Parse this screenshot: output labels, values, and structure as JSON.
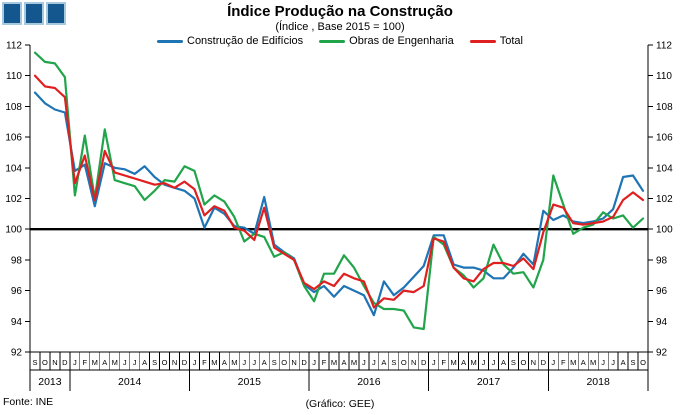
{
  "header": {
    "title": "Índice Produção na Construção",
    "subtitle": "(Índice , Base 2015 = 100)"
  },
  "footer": {
    "source": "Fonte: INE",
    "credit": "(Gráfico: GEE)"
  },
  "logo": {
    "square_fill": "#14578F",
    "square_border": "#A6C9E0",
    "square_count": 3
  },
  "chart_data": {
    "type": "line",
    "title": "Índice Produção na Construção",
    "subtitle": "(Índice , Base 2015 = 100)",
    "background": "#FFFFFF",
    "grid": false,
    "legend_position": "top",
    "reference_line": 100,
    "y_axis": {
      "min": 92,
      "max": 112,
      "tick_step": 2,
      "tick_labels": [
        112,
        110,
        108,
        106,
        104,
        102,
        100,
        98,
        96,
        94,
        92
      ],
      "sides": [
        "left",
        "right"
      ]
    },
    "x_axis": {
      "month_letters": [
        "S",
        "O",
        "N",
        "D",
        "J",
        "F",
        "M",
        "A",
        "M",
        "J",
        "J",
        "A",
        "S",
        "O",
        "N",
        "D",
        "J",
        "F",
        "M",
        "A",
        "M",
        "J",
        "J",
        "A",
        "S",
        "O",
        "N",
        "D",
        "J",
        "F",
        "M",
        "A",
        "M",
        "J",
        "J",
        "A",
        "S",
        "O",
        "N",
        "D",
        "J",
        "F",
        "M",
        "A",
        "M",
        "J",
        "J",
        "A",
        "S",
        "O",
        "N",
        "D",
        "J",
        "F",
        "M",
        "A",
        "M",
        "J",
        "J",
        "A",
        "S",
        "O"
      ],
      "years": [
        {
          "label": "2013",
          "months": 4
        },
        {
          "label": "2014",
          "months": 12
        },
        {
          "label": "2015",
          "months": 12
        },
        {
          "label": "2016",
          "months": 12
        },
        {
          "label": "2017",
          "months": 12
        },
        {
          "label": "2018",
          "months": 10
        }
      ]
    },
    "series": [
      {
        "name": "Construção de Edifícios",
        "color": "#1F74B4",
        "values": [
          108.9,
          108.2,
          107.8,
          107.6,
          103.8,
          104.2,
          101.5,
          104.3,
          104.0,
          103.9,
          103.6,
          104.1,
          103.4,
          102.9,
          102.7,
          102.5,
          102.0,
          100.1,
          101.4,
          101.0,
          100.2,
          100.1,
          99.7,
          102.1,
          99.0,
          98.5,
          98.1,
          96.4,
          95.9,
          96.3,
          95.6,
          96.3,
          96.0,
          95.7,
          94.4,
          96.6,
          95.7,
          96.2,
          96.9,
          97.6,
          99.6,
          99.6,
          97.7,
          97.5,
          97.5,
          97.3,
          96.8,
          96.8,
          97.5,
          98.4,
          97.7,
          101.2,
          100.6,
          100.9,
          100.5,
          100.4,
          100.5,
          100.7,
          101.3,
          103.4,
          103.5,
          102.5
        ]
      },
      {
        "name": "Obras de Engenharia",
        "color": "#22A44B",
        "values": [
          111.5,
          110.9,
          110.8,
          109.9,
          102.2,
          106.1,
          102.0,
          106.5,
          103.2,
          103.0,
          102.8,
          101.9,
          102.5,
          103.2,
          103.1,
          104.1,
          103.8,
          101.6,
          102.2,
          101.8,
          100.8,
          99.2,
          99.7,
          99.5,
          98.2,
          98.5,
          98.0,
          96.3,
          95.3,
          97.1,
          97.1,
          98.3,
          97.5,
          96.3,
          95.2,
          94.8,
          94.8,
          94.7,
          93.6,
          93.5,
          99.5,
          99.0,
          97.5,
          97.0,
          96.2,
          96.8,
          99.0,
          97.7,
          97.1,
          97.2,
          96.2,
          98.0,
          103.5,
          101.6,
          99.7,
          100.1,
          100.3,
          101.1,
          100.7,
          100.9,
          100.1,
          100.7
        ]
      },
      {
        "name": "Total",
        "color": "#E02020",
        "values": [
          110.0,
          109.3,
          109.2,
          108.6,
          103.0,
          104.8,
          101.9,
          105.1,
          103.7,
          103.5,
          103.3,
          103.1,
          102.9,
          103.0,
          102.7,
          103.1,
          102.6,
          100.9,
          101.5,
          101.2,
          100.1,
          99.9,
          99.3,
          101.4,
          98.8,
          98.4,
          98.0,
          96.5,
          96.1,
          96.6,
          96.3,
          97.1,
          96.8,
          96.6,
          94.9,
          95.5,
          95.4,
          96.0,
          95.9,
          96.3,
          99.4,
          99.2,
          97.5,
          96.8,
          96.6,
          97.4,
          97.8,
          97.8,
          97.6,
          98.1,
          97.4,
          99.8,
          101.6,
          101.4,
          100.4,
          100.3,
          100.4,
          100.5,
          100.8,
          101.9,
          102.4,
          101.9
        ]
      }
    ]
  }
}
